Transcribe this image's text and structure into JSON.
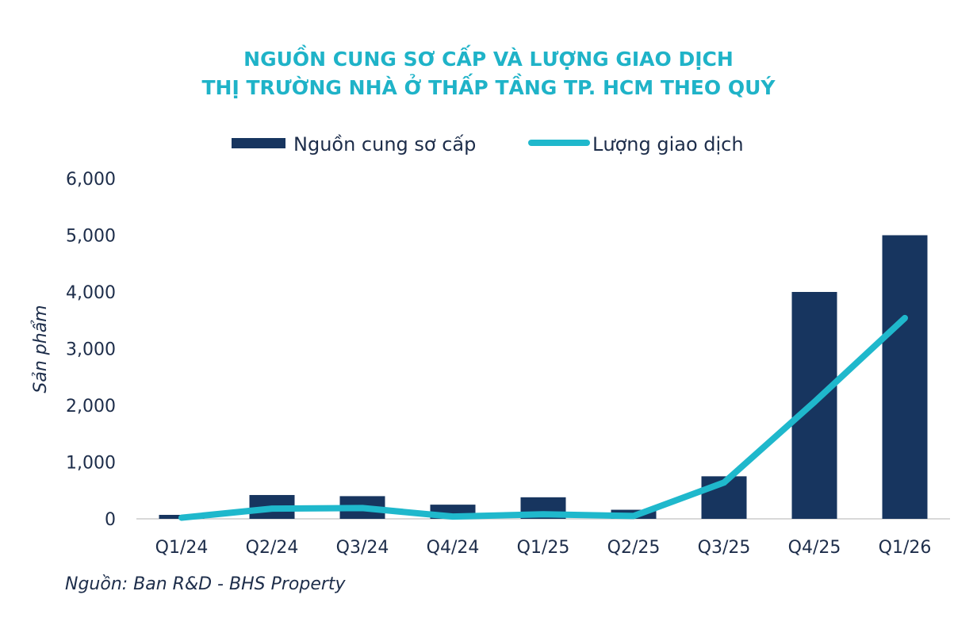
{
  "chart_data": {
    "type": "bar+line",
    "title": [
      "NGUỒN CUNG SƠ CẤP VÀ LƯỢNG GIAO DỊCH",
      "THỊ TRƯỜNG NHÀ Ở THẤP TẦNG TP. HCM THEO QUÝ"
    ],
    "ylabel": "Sản phẩm",
    "xlabel": "",
    "ylim": [
      0,
      6000
    ],
    "yticks": [
      "0",
      "1,000",
      "2,000",
      "3,000",
      "4,000",
      "5,000",
      "6,000"
    ],
    "categories": [
      "Q1/24",
      "Q2/24",
      "Q3/24",
      "Q4/24",
      "Q1/25",
      "Q2/25",
      "Q3/25",
      "Q4/25",
      "Q1/26"
    ],
    "series": [
      {
        "name": "Nguồn cung sơ cấp",
        "type": "bar",
        "color": "#17355f",
        "values": [
          70,
          420,
          400,
          250,
          380,
          160,
          750,
          4000,
          5000
        ]
      },
      {
        "name": "Lượng giao dịch",
        "type": "line",
        "color": "#1fb8cc",
        "values": [
          20,
          180,
          190,
          40,
          80,
          50,
          640,
          2060,
          3540
        ]
      }
    ],
    "legend_position": "top",
    "grid": false,
    "source": "Nguồn: Ban R&D - BHS Property"
  }
}
